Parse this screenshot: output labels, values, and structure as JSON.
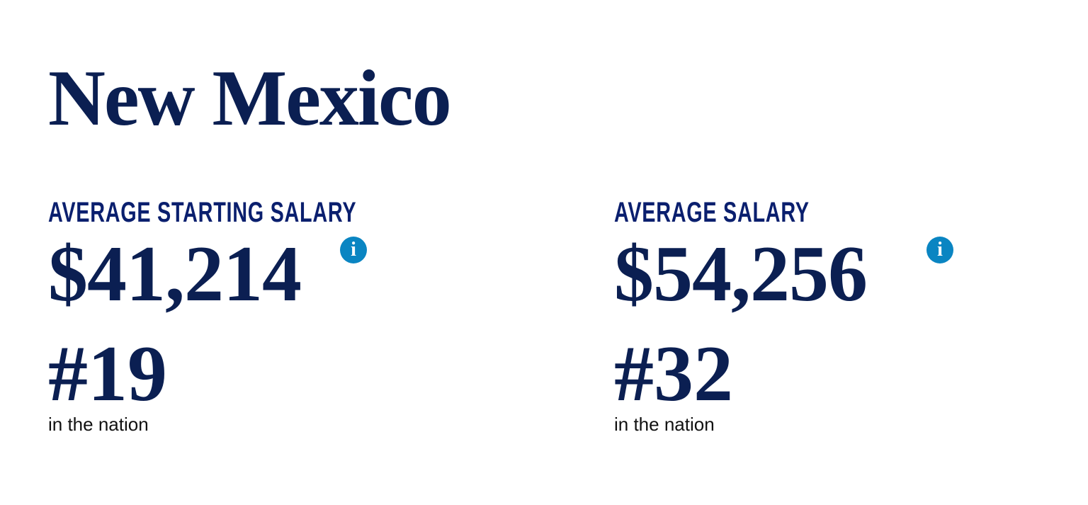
{
  "title": "New Mexico",
  "stats": [
    {
      "label": "AVERAGE STARTING SALARY",
      "value": "$41,214",
      "rank": "#19",
      "rank_caption": "in the nation",
      "info_icon": "i"
    },
    {
      "label": "AVERAGE SALARY",
      "value": "$54,256",
      "rank": "#32",
      "rank_caption": "in the nation",
      "info_icon": "i"
    }
  ],
  "colors": {
    "heading": "#0b1f52",
    "label": "#0a1f6e",
    "info": "#0a85c2"
  }
}
